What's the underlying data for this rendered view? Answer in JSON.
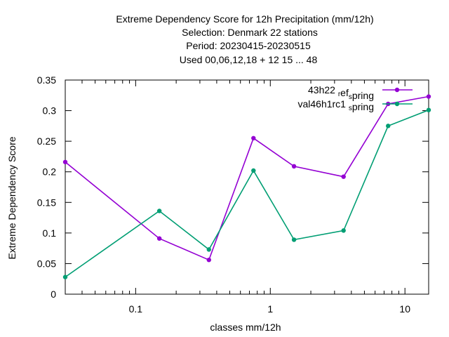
{
  "chart_data": {
    "type": "line",
    "title_lines": [
      "Extreme Dependency Score  for 12h Precipitation (mm/12h)",
      "Selection: Denmark     22 stations",
      "Period: 20230415-20230515",
      "Used  00,06,12,18  + 12 15 ... 48"
    ],
    "xlabel": "classes mm/12h",
    "ylabel": "Extreme Dependency Score",
    "x_scale": "log",
    "xlim": [
      0.03,
      15
    ],
    "ylim": [
      0,
      0.35
    ],
    "x_ticks": [
      {
        "value": 0.1,
        "label": "0.1"
      },
      {
        "value": 1,
        "label": "1"
      },
      {
        "value": 10,
        "label": "10"
      }
    ],
    "y_ticks": [
      {
        "value": 0,
        "label": "0"
      },
      {
        "value": 0.05,
        "label": "0.05"
      },
      {
        "value": 0.1,
        "label": "0.1"
      },
      {
        "value": 0.15,
        "label": "0.15"
      },
      {
        "value": 0.2,
        "label": "0.2"
      },
      {
        "value": 0.25,
        "label": "0.25"
      },
      {
        "value": 0.3,
        "label": "0.3"
      },
      {
        "value": 0.35,
        "label": "0.35"
      }
    ],
    "grid": false,
    "legend_position": "top-right",
    "x": [
      0.03,
      0.15,
      0.35,
      0.75,
      1.5,
      3.5,
      7.5,
      15
    ],
    "series": [
      {
        "name": "43h22 ref spring",
        "legend_parts": [
          "43h22 ",
          "r",
          "ef",
          "s",
          "pring"
        ],
        "color": "#9400d3",
        "values": [
          0.216,
          0.091,
          0.056,
          0.255,
          0.209,
          0.192,
          0.311,
          0.323
        ]
      },
      {
        "name": "val46h1rc1 spring",
        "legend_parts": [
          "val46h1rc1 ",
          "",
          "",
          "s",
          "pring"
        ],
        "color": "#009e73",
        "values": [
          0.028,
          0.136,
          0.073,
          0.202,
          0.089,
          0.104,
          0.275,
          0.301
        ]
      }
    ]
  }
}
